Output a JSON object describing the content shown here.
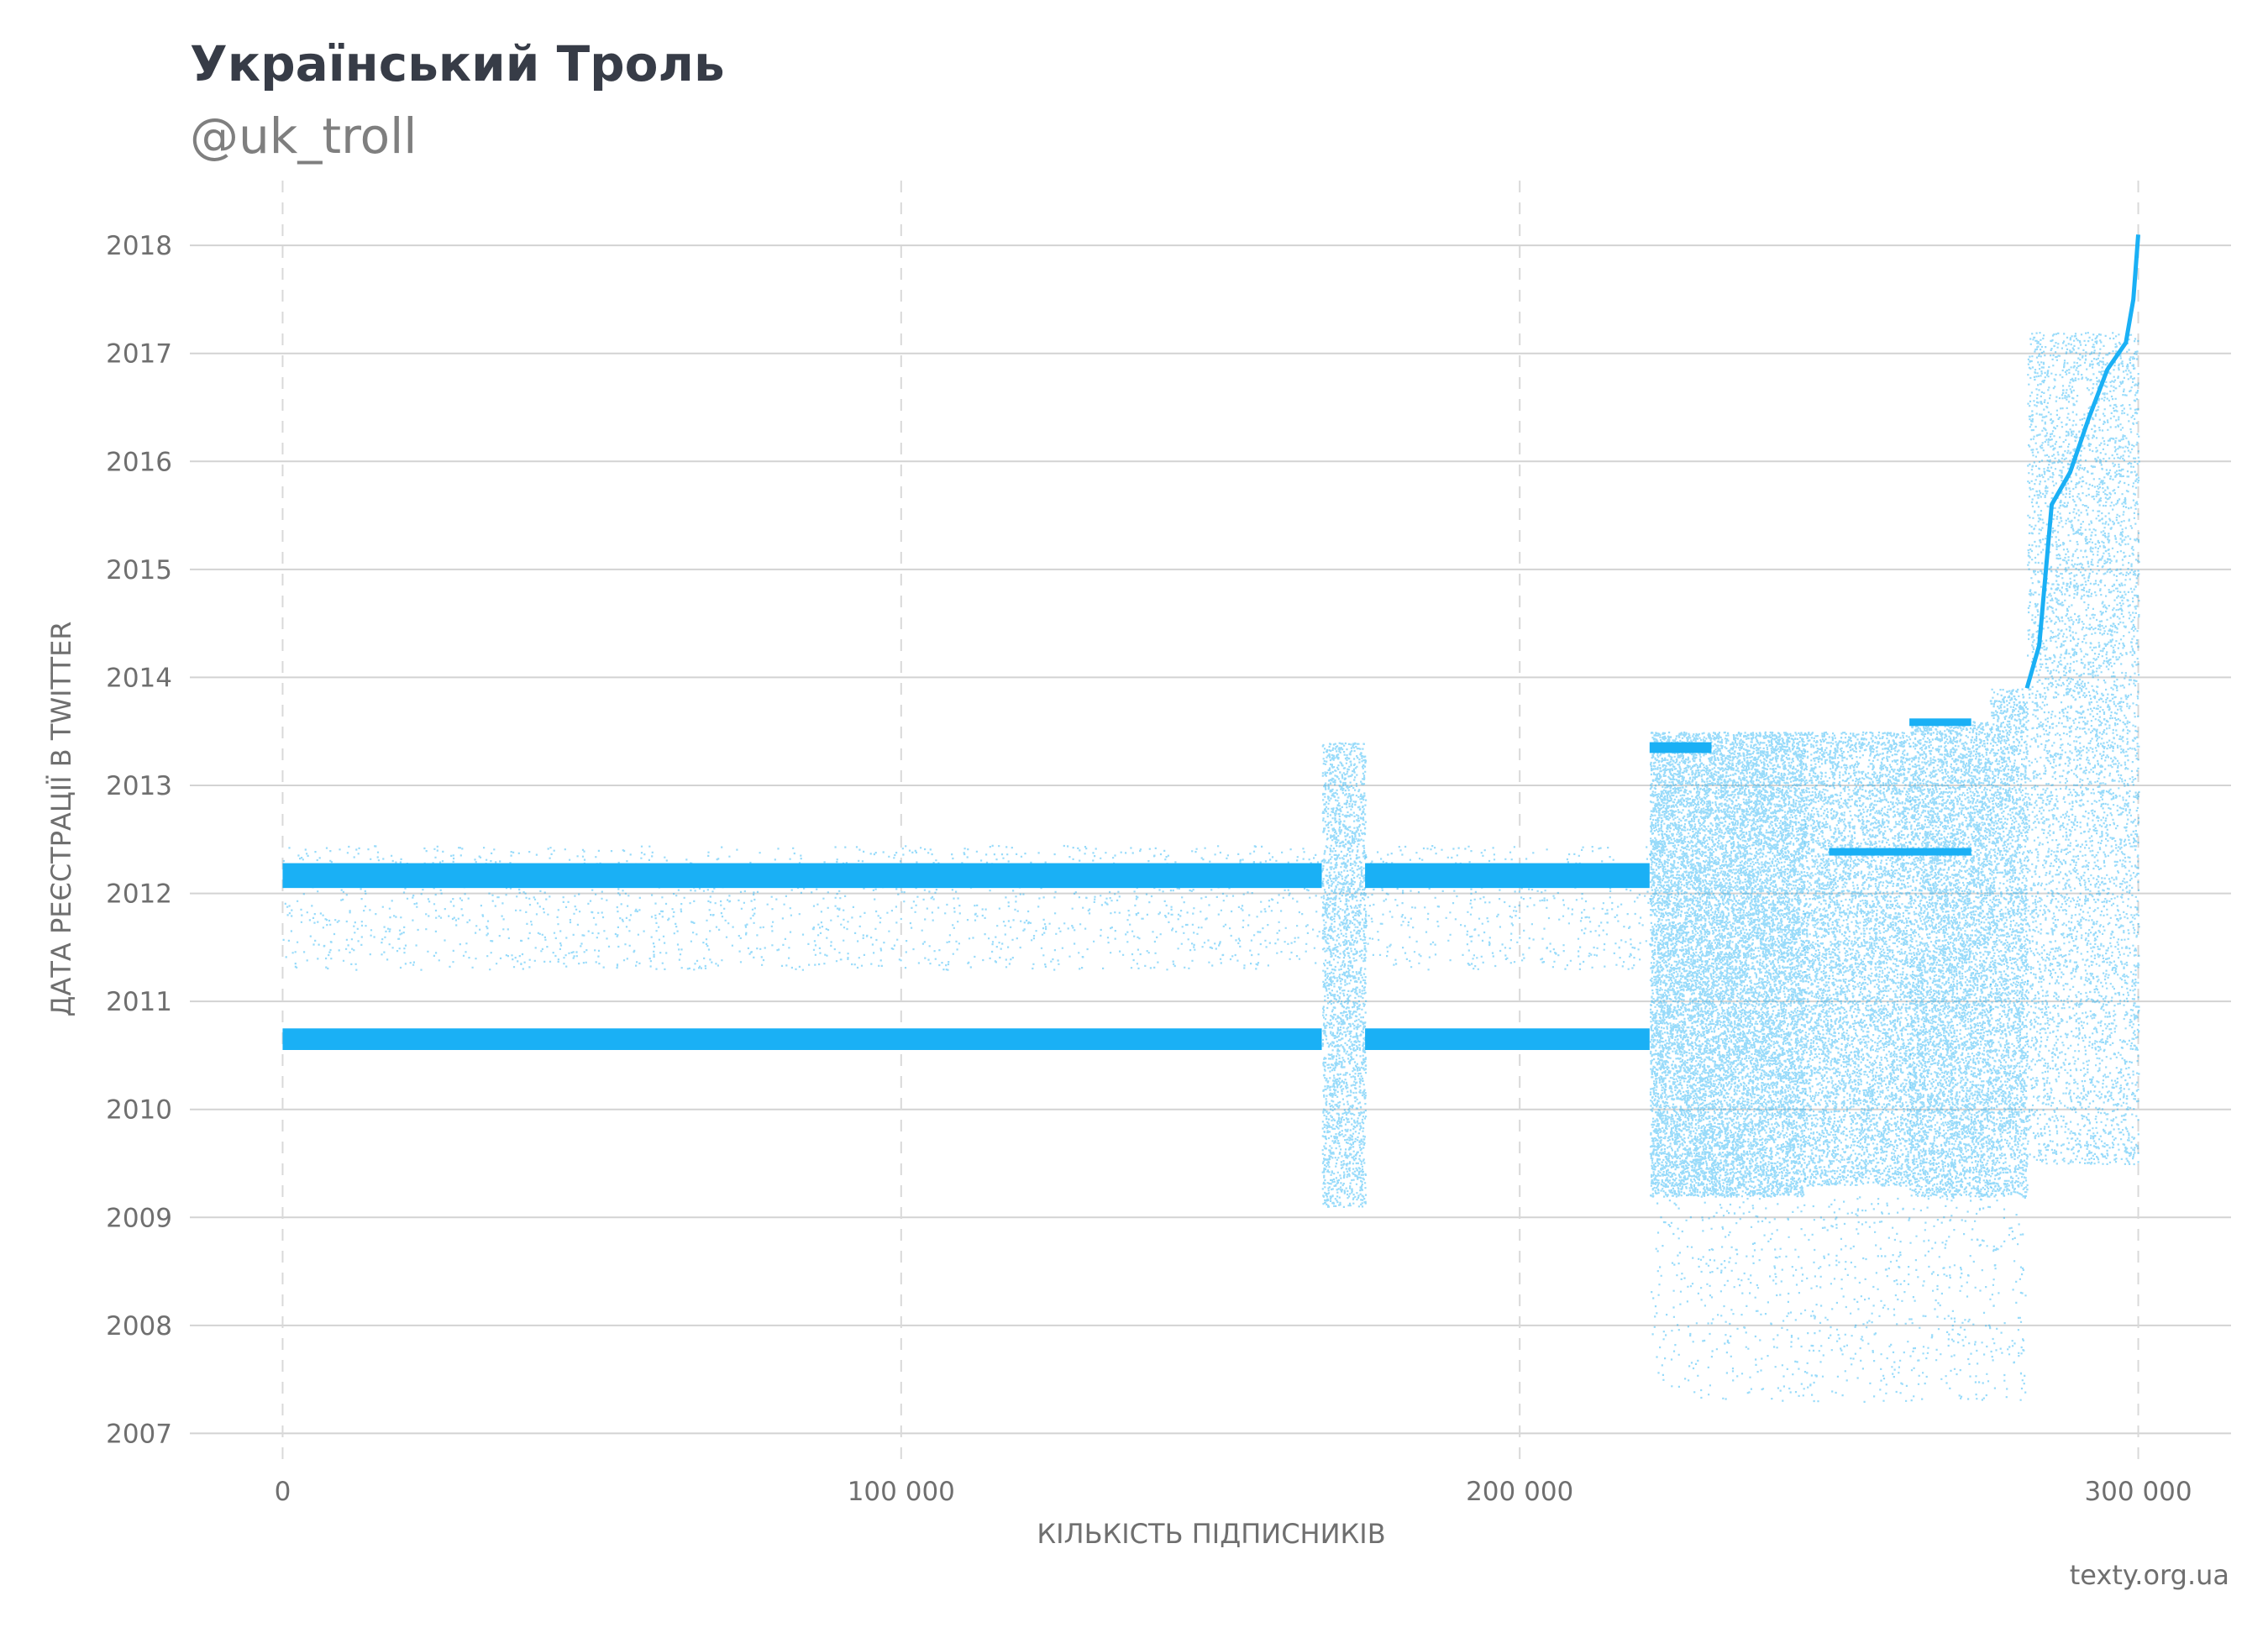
{
  "header": {
    "title": "Український Троль",
    "subtitle": "@uk_troll"
  },
  "footer": {
    "source": "texty.org.ua"
  },
  "chart_data": {
    "type": "scatter",
    "title": "Український Троль",
    "subtitle": "@uk_troll",
    "xlabel": "КІЛЬКІСТЬ ПІДПИСНИКІВ",
    "ylabel": "ДАТА РЕЄСТРАЦІЇ В TWITTER",
    "xlim": [
      -15000,
      315000
    ],
    "ylim": [
      2006.7,
      2018.6
    ],
    "x_ticks": [
      0,
      100000,
      200000,
      300000
    ],
    "x_tick_labels": [
      "0",
      "100 000",
      "200 000",
      "300 000"
    ],
    "y_ticks": [
      2007,
      2008,
      2009,
      2010,
      2011,
      2012,
      2013,
      2014,
      2015,
      2016,
      2017,
      2018
    ],
    "y_tick_labels": [
      "2007",
      "2008",
      "2009",
      "2010",
      "2011",
      "2012",
      "2013",
      "2014",
      "2015",
      "2016",
      "2017",
      "2018"
    ],
    "x_grid": "dashed",
    "y_grid": "solid",
    "point_color": "#1ab0f5",
    "dense_bands": [
      {
        "x": [
          0,
          168000
        ],
        "y": [
          2012.05,
          2012.28
        ]
      },
      {
        "x": [
          175000,
          221000
        ],
        "y": [
          2012.05,
          2012.28
        ]
      },
      {
        "x": [
          0,
          168000
        ],
        "y": [
          2010.55,
          2010.75
        ]
      },
      {
        "x": [
          175000,
          221000
        ],
        "y": [
          2010.55,
          2010.75
        ]
      },
      {
        "x": [
          221000,
          231000
        ],
        "y": [
          2013.3,
          2013.4
        ]
      },
      {
        "x": [
          250000,
          273000
        ],
        "y": [
          2012.35,
          2012.42
        ]
      },
      {
        "x": [
          263000,
          273000
        ],
        "y": [
          2013.55,
          2013.62
        ]
      }
    ],
    "scatter_regions": [
      {
        "x": [
          0,
          168000
        ],
        "y": [
          2011.3,
          2012.45
        ],
        "density": 1800
      },
      {
        "x": [
          175000,
          221000
        ],
        "y": [
          2011.3,
          2012.45
        ],
        "density": 500
      },
      {
        "x": [
          168000,
          175000
        ],
        "y": [
          2009.1,
          2013.4
        ],
        "density": 2500
      },
      {
        "x": [
          221000,
          246000
        ],
        "y": [
          2009.2,
          2013.5
        ],
        "density": 14000
      },
      {
        "x": [
          246000,
          263000
        ],
        "y": [
          2009.3,
          2013.5
        ],
        "density": 6000
      },
      {
        "x": [
          263000,
          276000
        ],
        "y": [
          2009.2,
          2013.6
        ],
        "density": 6000
      },
      {
        "x": [
          276000,
          282000
        ],
        "y": [
          2009.2,
          2013.9
        ],
        "density": 2500
      },
      {
        "x": [
          221000,
          282000
        ],
        "y": [
          2007.3,
          2009.2
        ],
        "density": 900
      },
      {
        "x": [
          282000,
          300000
        ],
        "y": [
          2009.5,
          2017.2
        ],
        "density": 5500
      }
    ],
    "frontier_curve": [
      [
        282000,
        2013.9
      ],
      [
        284000,
        2014.3
      ],
      [
        286000,
        2015.6
      ],
      [
        289000,
        2015.9
      ],
      [
        292000,
        2016.4
      ],
      [
        295000,
        2016.85
      ],
      [
        298000,
        2017.1
      ],
      [
        299200,
        2017.5
      ],
      [
        300000,
        2018.1
      ]
    ]
  }
}
